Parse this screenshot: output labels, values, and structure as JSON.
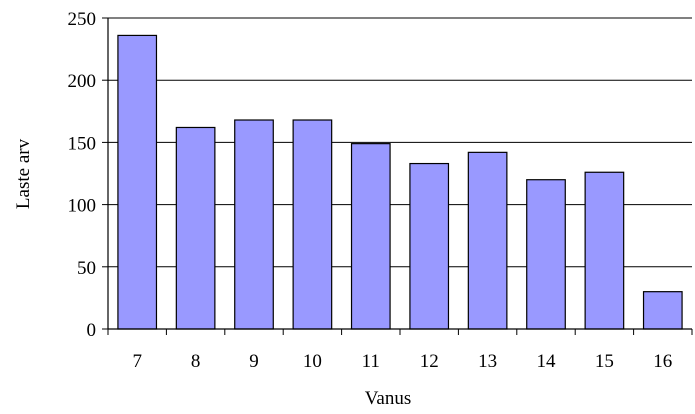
{
  "chart_data": {
    "type": "bar",
    "categories": [
      "7",
      "8",
      "9",
      "10",
      "11",
      "12",
      "13",
      "14",
      "15",
      "16"
    ],
    "values": [
      236,
      162,
      168,
      168,
      149,
      133,
      142,
      120,
      126,
      30
    ],
    "xlabel": "Vanus",
    "ylabel": "Laste arv",
    "ylim": [
      0,
      250
    ],
    "yticks": [
      0,
      50,
      100,
      150,
      200,
      250
    ],
    "grid": true,
    "legend": "none",
    "bar_color": "#9999ff",
    "bar_edge_color": "#000000"
  }
}
